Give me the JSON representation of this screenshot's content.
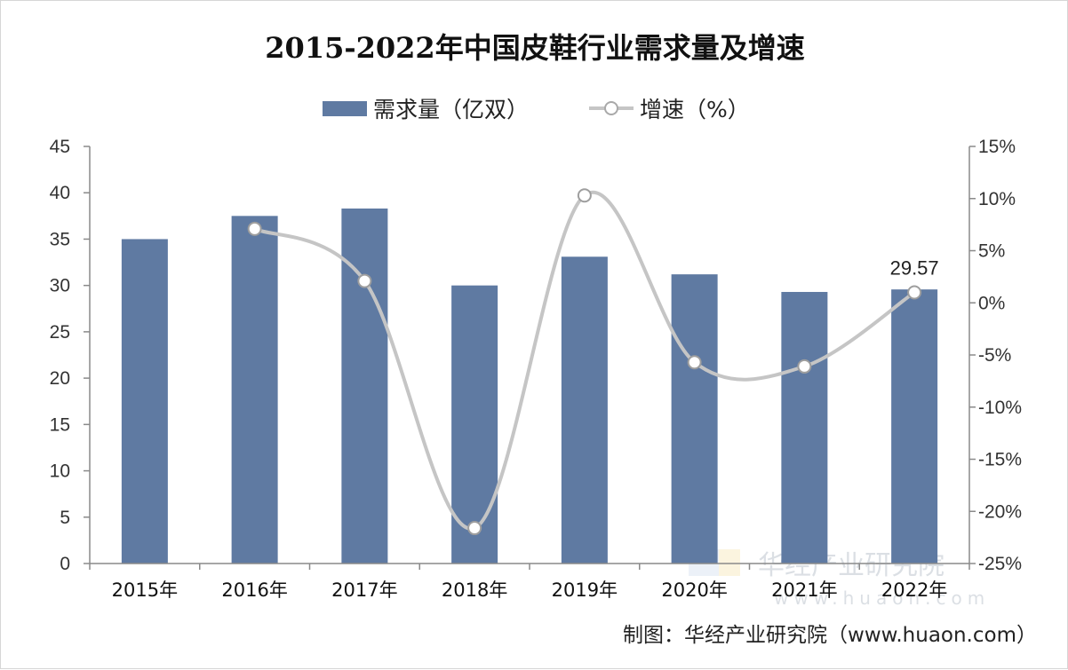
{
  "chart_data": {
    "type": "bar",
    "title": "2015-2022年中国皮鞋行业需求量及增速",
    "categories": [
      "2015年",
      "2016年",
      "2017年",
      "2018年",
      "2019年",
      "2020年",
      "2021年",
      "2022年"
    ],
    "series": [
      {
        "name": "需求量（亿双）",
        "type": "bar",
        "axis": "left",
        "color": "#5f7aa2",
        "values": [
          35.0,
          37.5,
          38.3,
          30.0,
          33.1,
          31.2,
          29.3,
          29.57
        ]
      },
      {
        "name": "增速（%）",
        "type": "line",
        "axis": "right",
        "color": "#c5c5c5",
        "smooth": true,
        "values": [
          null,
          7.1,
          2.1,
          -21.6,
          10.3,
          -5.7,
          -6.1,
          1.0
        ]
      }
    ],
    "y_left": {
      "min": 0,
      "max": 45,
      "step": 5,
      "tick_labels": [
        "0",
        "5",
        "10",
        "15",
        "20",
        "25",
        "30",
        "35",
        "40",
        "45"
      ]
    },
    "y_right": {
      "min": -25,
      "max": 15,
      "step": 5,
      "tick_labels": [
        "-25%",
        "-20%",
        "-15%",
        "-10%",
        "-5%",
        "0%",
        "5%",
        "10%",
        "15%"
      ]
    },
    "data_labels": [
      {
        "category": "2022年",
        "text": "29.57"
      }
    ],
    "legend_position": "top-center",
    "grid": false
  },
  "source_text": "制图：华经产业研究院（www.huaon.com）",
  "watermark": {
    "name": "华经产业研究院",
    "url": "www.huaon.com"
  }
}
